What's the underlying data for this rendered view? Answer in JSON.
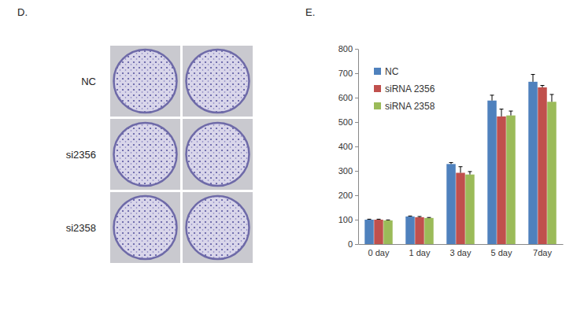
{
  "panel_d": {
    "label": "D.",
    "rows": [
      "NC",
      "si2356",
      "si2358"
    ]
  },
  "panel_e": {
    "label": "E."
  },
  "chart_data": {
    "type": "bar",
    "categories": [
      "0 day",
      "1 day",
      "3 day",
      "5 day",
      "7day"
    ],
    "series": [
      {
        "name": "NC",
        "color": "#4f81bd",
        "values": [
          100,
          113,
          328,
          588,
          665
        ],
        "errors": [
          2,
          2,
          6,
          22,
          30
        ]
      },
      {
        "name": "siRNA 2356",
        "color": "#c0504d",
        "values": [
          100,
          110,
          292,
          523,
          642
        ],
        "errors": [
          2,
          3,
          25,
          30,
          8
        ]
      },
      {
        "name": "siRNA 2358",
        "color": "#9bbb59",
        "values": [
          97,
          107,
          285,
          527,
          583
        ],
        "errors": [
          2,
          2,
          12,
          18,
          30
        ]
      }
    ],
    "ylim": [
      0,
      800
    ],
    "yticks": [
      0,
      100,
      200,
      300,
      400,
      500,
      600,
      700,
      800
    ],
    "grid": false,
    "legend": "upper-left"
  }
}
